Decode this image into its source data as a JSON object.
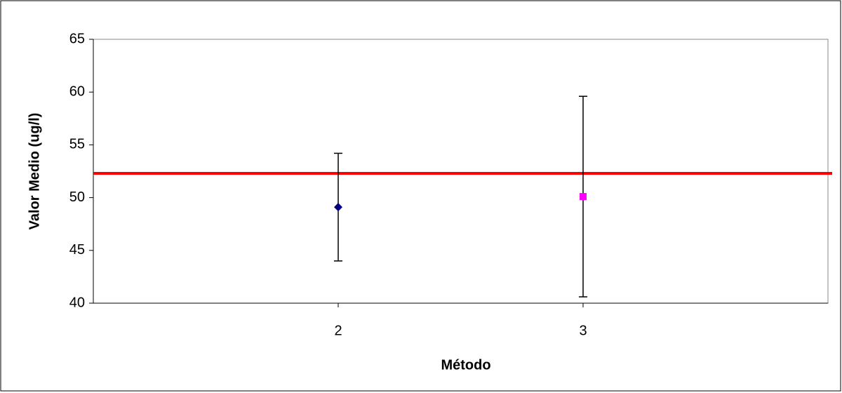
{
  "chart_data": {
    "type": "scatter",
    "x_label": "Método",
    "y_label": "Valor Medio (ug/l)",
    "xlim": [
      1,
      4
    ],
    "xticks": [
      2,
      3
    ],
    "ylim": [
      40,
      65
    ],
    "yticks": [
      40,
      45,
      50,
      55,
      60,
      65
    ],
    "series": [
      {
        "color": "#000080",
        "marker": "diamond",
        "x": [
          2
        ],
        "values": [
          49.1
        ],
        "errors": [
          5.1
        ]
      },
      {
        "color": "#ff00ff",
        "marker": "square",
        "x": [
          3
        ],
        "values": [
          50.1
        ],
        "errors": [
          9.5
        ]
      }
    ],
    "reference_line": {
      "value": 52.3,
      "color": "#ff0000"
    }
  }
}
